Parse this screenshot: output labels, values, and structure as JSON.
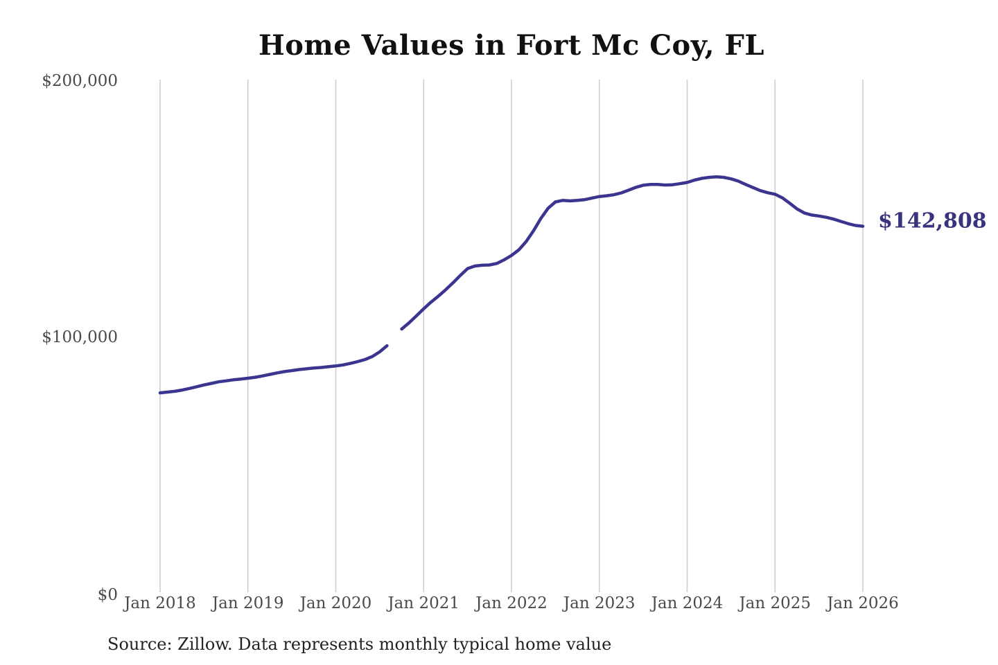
{
  "page": {
    "title": "Home Values in Fort Mc Coy, FL",
    "source_note": "Source: Zillow. Data represents monthly typical home value"
  },
  "chart_data": {
    "type": "line",
    "title": "Home Values in Fort Mc Coy, FL",
    "xlabel": "",
    "ylabel": "",
    "ylim": [
      0,
      200000
    ],
    "grid": "vertical-only",
    "legend": "none",
    "x_tick_labels": [
      "Jan 2018",
      "Jan 2019",
      "Jan 2020",
      "Jan 2021",
      "Jan 2022",
      "Jan 2023",
      "Jan 2024",
      "Jan 2025",
      "Jan 2026"
    ],
    "y_tick_labels": [
      "$0",
      "$100,000",
      "$200,000"
    ],
    "y_tick_values": [
      0,
      100000,
      200000
    ],
    "end_label": "$142,808",
    "end_value": 142808,
    "series": [
      {
        "name": "Monthly typical home value",
        "start_month": "2018-01",
        "end_month": "2026-01",
        "frequency": "monthly",
        "gap_months": [
          "2020-09"
        ],
        "values": [
          77800,
          78100,
          78400,
          78900,
          79500,
          80200,
          80900,
          81500,
          82100,
          82500,
          82900,
          83200,
          83500,
          83900,
          84400,
          85000,
          85600,
          86100,
          86500,
          86900,
          87200,
          87500,
          87700,
          88000,
          88300,
          88700,
          89300,
          90000,
          90800,
          92000,
          93800,
          96200,
          null,
          102700,
          105100,
          107800,
          110600,
          113200,
          115500,
          118000,
          120700,
          123600,
          126300,
          127300,
          127600,
          127700,
          128300,
          129700,
          131400,
          133600,
          136800,
          141000,
          145800,
          149800,
          152300,
          152900,
          152700,
          152900,
          153200,
          153800,
          154400,
          154700,
          155100,
          155800,
          156900,
          158000,
          158800,
          159100,
          159100,
          158900,
          159000,
          159400,
          159900,
          160800,
          161500,
          161900,
          162100,
          161900,
          161300,
          160400,
          159100,
          157900,
          156700,
          155900,
          155300,
          153900,
          151800,
          149600,
          148000,
          147200,
          146800,
          146300,
          145600,
          144700,
          143800,
          143100,
          142808
        ]
      }
    ],
    "colors": {
      "line": "#3b3590",
      "grid": "#cccccc",
      "end_label": "#39327f",
      "title": "#111111",
      "axis_text": "#4a4a4a",
      "source_text": "#222222",
      "background": "#ffffff"
    }
  }
}
